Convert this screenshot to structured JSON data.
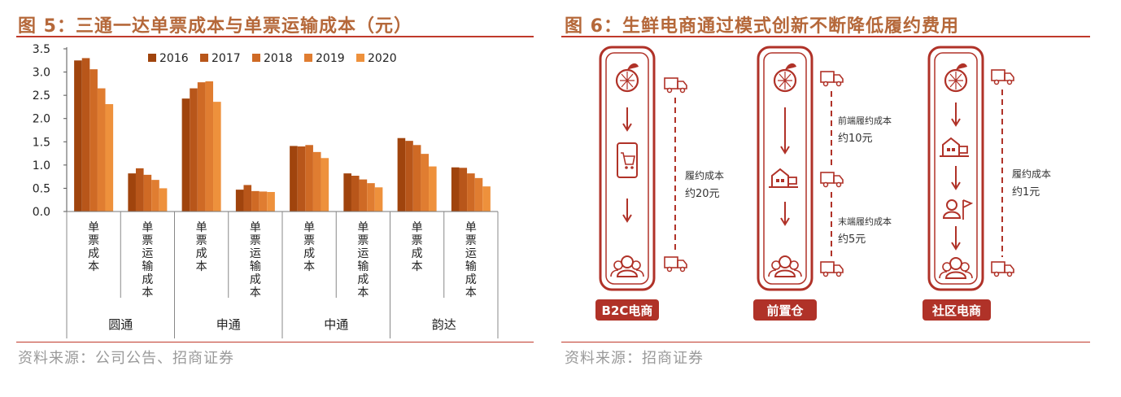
{
  "fig5": {
    "title": "图 5：三通一达单票成本与单票运输成本（元）",
    "source": "资料来源：公司公告、招商证券"
  },
  "fig6": {
    "title": "图 6：生鲜电商通过模式创新不断降低履约费用",
    "source": "资料来源：招商证券",
    "panels": [
      {
        "label": "B2C电商",
        "cost_line1": "履约成本",
        "cost_line2": "约20元"
      },
      {
        "label": "前置仓",
        "front_line1": "前端履约成本",
        "front_line2": "约10元",
        "last_line1": "末端履约成本",
        "last_line2": "约5元"
      },
      {
        "label": "社区电商",
        "cost_line1": "履约成本",
        "cost_line2": "约1元"
      }
    ]
  },
  "chart_data": {
    "type": "bar",
    "ylim": [
      0,
      3.5
    ],
    "yticks": [
      "0.0",
      "0.5",
      "1.0",
      "1.5",
      "2.0",
      "2.5",
      "3.0",
      "3.5"
    ],
    "groups": [
      "圆通",
      "申通",
      "中通",
      "韵达"
    ],
    "subcategories": [
      "单票成本",
      "单票运输成本"
    ],
    "categories": [
      "圆通-单票成本",
      "圆通-单票运输成本",
      "申通-单票成本",
      "申通-单票运输成本",
      "中通-单票成本",
      "中通-单票运输成本",
      "韵达-单票成本",
      "韵达-单票运输成本"
    ],
    "legend_position": "top-right",
    "series": [
      {
        "name": "2016",
        "color": "#a0440d",
        "values": [
          3.25,
          0.82,
          2.43,
          0.47,
          1.41,
          0.82,
          1.58,
          0.95
        ]
      },
      {
        "name": "2017",
        "color": "#b8561a",
        "values": [
          3.3,
          0.93,
          2.65,
          0.57,
          1.4,
          0.77,
          1.52,
          0.94
        ]
      },
      {
        "name": "2018",
        "color": "#cf6a25",
        "values": [
          3.06,
          0.79,
          2.78,
          0.44,
          1.43,
          0.69,
          1.43,
          0.82
        ]
      },
      {
        "name": "2019",
        "color": "#e07d31",
        "values": [
          2.65,
          0.68,
          2.8,
          0.43,
          1.28,
          0.61,
          1.24,
          0.72
        ]
      },
      {
        "name": "2020",
        "color": "#ee913c",
        "values": [
          2.31,
          0.5,
          2.36,
          0.42,
          1.15,
          0.52,
          0.97,
          0.54
        ]
      }
    ]
  }
}
